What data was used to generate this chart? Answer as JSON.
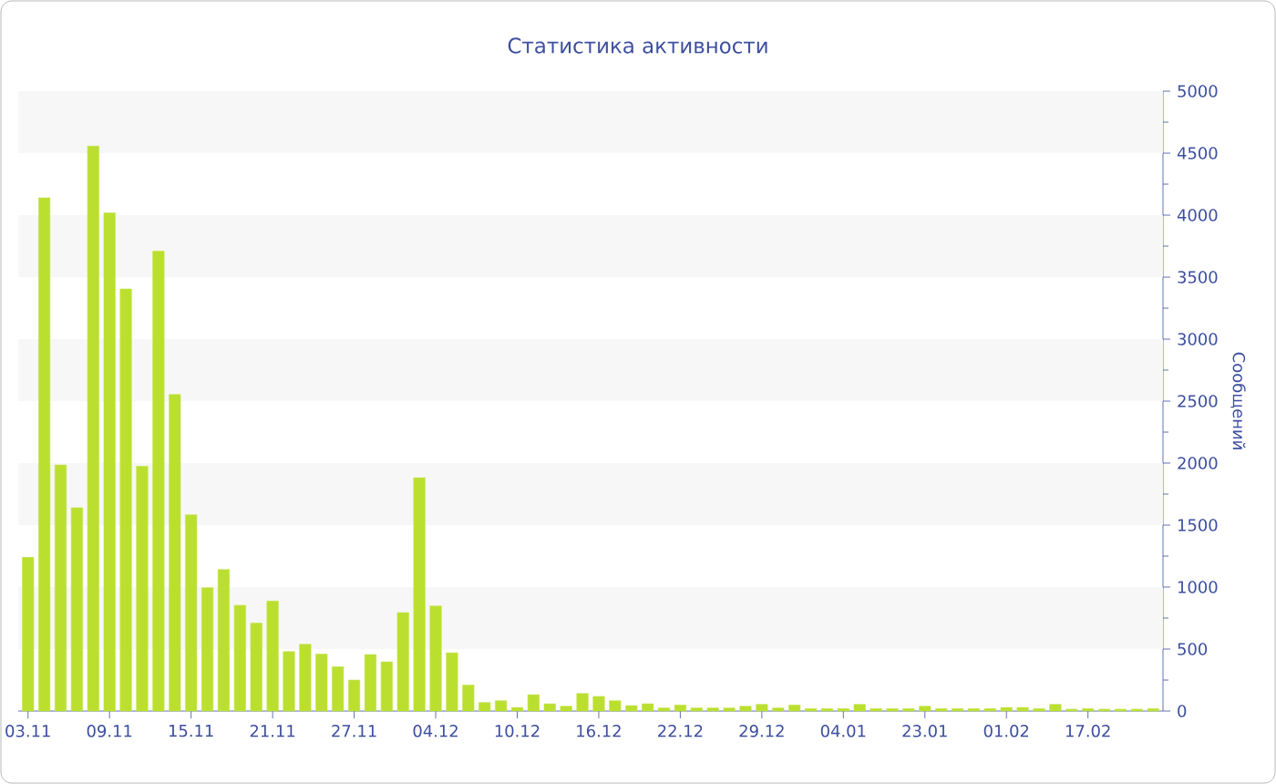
{
  "chart_data": {
    "type": "bar",
    "title": "Статистика активности",
    "ylabel": "Сообщений",
    "categories": [
      "03.11",
      null,
      null,
      null,
      null,
      "09.11",
      null,
      null,
      null,
      null,
      "15.11",
      null,
      null,
      null,
      null,
      "21.11",
      null,
      null,
      null,
      null,
      "27.11",
      null,
      null,
      null,
      null,
      "04.12",
      null,
      null,
      null,
      null,
      "10.12",
      null,
      null,
      null,
      null,
      "16.12",
      null,
      null,
      null,
      null,
      "22.12",
      null,
      null,
      null,
      null,
      "29.12",
      null,
      null,
      null,
      null,
      "04.01",
      null,
      null,
      null,
      null,
      "23.01",
      null,
      null,
      null,
      null,
      "01.02",
      null,
      null,
      null,
      null,
      "17.02",
      null,
      null,
      null,
      null
    ],
    "values": [
      1240,
      4140,
      1985,
      1640,
      4557,
      4018,
      3405,
      1975,
      3710,
      2553,
      1583,
      995,
      1142,
      853,
      710,
      887,
      480,
      539,
      460,
      358,
      250,
      456,
      397,
      794,
      1882,
      848,
      470,
      210,
      69,
      83,
      29,
      132,
      59,
      39,
      142,
      118,
      83,
      44,
      59,
      25,
      49,
      25,
      25,
      25,
      39,
      54,
      25,
      49,
      20,
      20,
      20,
      54,
      20,
      20,
      20,
      39,
      20,
      20,
      20,
      20,
      29,
      29,
      20,
      54,
      15,
      20,
      15,
      15,
      15,
      20
    ],
    "color": "#bbdf2f",
    "ylim": [
      0,
      5000
    ],
    "yticks": [
      0,
      500,
      1000,
      1500,
      2000,
      2500,
      3000,
      3500,
      4000,
      4500,
      5000
    ],
    "bands": [
      {
        "axis": "y",
        "from": 500,
        "to": 1000,
        "color": "#f7f7f7"
      },
      {
        "axis": "y",
        "from": 1500,
        "to": 2000,
        "color": "#f7f7f7"
      },
      {
        "axis": "y",
        "from": 2500,
        "to": 3000,
        "color": "#f7f7f7"
      },
      {
        "axis": "y",
        "from": 3500,
        "to": 4000,
        "color": "#f7f7f7"
      },
      {
        "axis": "y",
        "from": 4500,
        "to": 5000,
        "color": "#f7f7f7"
      }
    ]
  }
}
